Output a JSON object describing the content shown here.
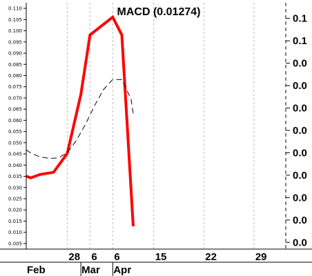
{
  "chart_data": {
    "type": "line",
    "title": "MACD (0.01274)",
    "left_axis": {
      "ticks": [
        0.005,
        0.01,
        0.015,
        0.02,
        0.025,
        0.03,
        0.035,
        0.04,
        0.045,
        0.05,
        0.055,
        0.06,
        0.065,
        0.07,
        0.075,
        0.08,
        0.085,
        0.09,
        0.095,
        0.1,
        0.105,
        0.11
      ],
      "tick_labels": [
        "0.005",
        "0.010",
        "0.015",
        "0.020",
        "0.025",
        "0.030",
        "0.035",
        "0.040",
        "0.045",
        "0.050",
        "0.055",
        "0.060",
        "0.065",
        "0.070",
        "0.075",
        "0.080",
        "0.085",
        "0.090",
        "0.095",
        "0.100",
        "0.105",
        "0.110"
      ],
      "ylim": [
        0.0025,
        0.1125
      ]
    },
    "right_axis": {
      "ticks": [
        0.0055,
        0.0155,
        0.0255,
        0.0355,
        0.0455,
        0.0555,
        0.0655,
        0.0755,
        0.0855,
        0.0955,
        0.1055
      ],
      "tick_labels": [
        "0.0",
        "0.0",
        "0.0",
        "0.0",
        "0.0",
        "0.0",
        "0.0",
        "0.0",
        "0.0",
        "0.1",
        "0.1"
      ]
    },
    "x_axis": {
      "xlim": [
        -2,
        55
      ],
      "top_ticks": [
        {
          "x": 7,
          "label": "28"
        },
        {
          "x": 12,
          "label": "6"
        },
        {
          "x": 17,
          "label": "6"
        },
        {
          "x": 26,
          "label": "15"
        },
        {
          "x": 37,
          "label": "22"
        },
        {
          "x": 48,
          "label": "29"
        }
      ],
      "bottom_ticks": [
        {
          "x": -2,
          "label": "Feb"
        },
        {
          "x": 10,
          "label": "Mar"
        },
        {
          "x": 17,
          "label": "Apr"
        }
      ]
    },
    "grid": true,
    "series": [
      {
        "role": "macd",
        "color": "#ff0000",
        "style": "solid",
        "x": [
          -2,
          -1,
          1,
          4,
          7,
          10,
          12,
          14,
          17,
          19,
          21.5
        ],
        "y": [
          0.035,
          0.0343,
          0.0358,
          0.0368,
          0.0452,
          0.0716,
          0.0981,
          0.1013,
          0.1061,
          0.0981,
          0.0127
        ]
      },
      {
        "role": "signal",
        "color": "#000000",
        "style": "dashed",
        "x": [
          -2,
          -1,
          1,
          3,
          5,
          7,
          9,
          11,
          13,
          15,
          17,
          19,
          21,
          21.5
        ],
        "y": [
          0.0468,
          0.0454,
          0.0437,
          0.043,
          0.0432,
          0.0455,
          0.051,
          0.0582,
          0.0665,
          0.0738,
          0.0782,
          0.0782,
          0.0696,
          0.063
        ]
      }
    ]
  }
}
